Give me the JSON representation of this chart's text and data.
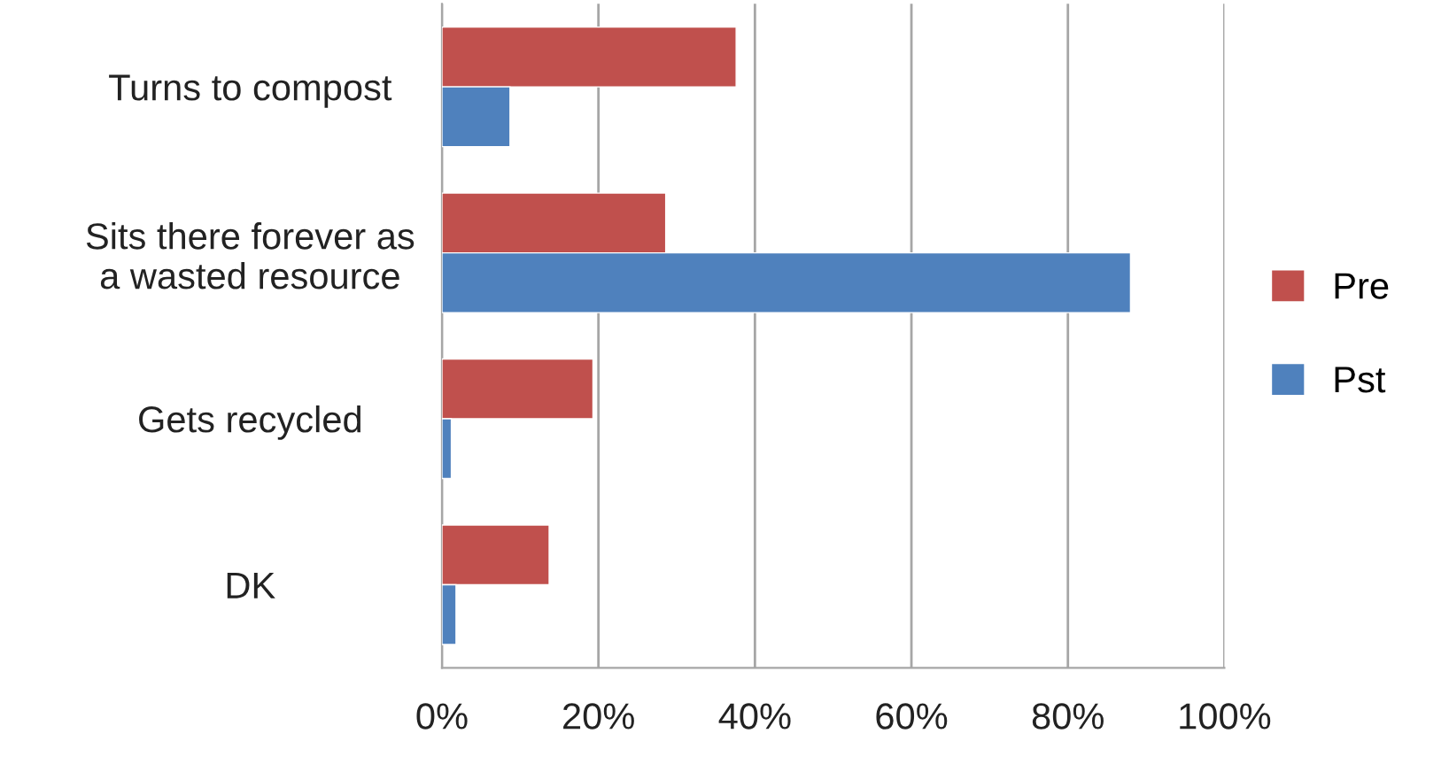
{
  "chart_data": {
    "type": "bar",
    "orientation": "horizontal",
    "categories": [
      "Turns to compost",
      "Sits there forever as\na wasted resource",
      "Gets recycled",
      "DK"
    ],
    "series": [
      {
        "name": "Pre",
        "color": "#c0504d",
        "values": [
          37.6,
          28.6,
          19.3,
          13.7
        ]
      },
      {
        "name": "Pst",
        "color": "#4f81bd",
        "values": [
          8.7,
          88,
          1.2,
          1.8
        ]
      }
    ],
    "xlim": [
      0,
      100
    ],
    "xticks": [
      {
        "value": 0,
        "label": "0%"
      },
      {
        "value": 20,
        "label": "20%"
      },
      {
        "value": 40,
        "label": "40%"
      },
      {
        "value": 60,
        "label": "60%"
      },
      {
        "value": 80,
        "label": "80%"
      },
      {
        "value": 100,
        "label": "100%"
      }
    ],
    "grid": "x",
    "legend": "right"
  }
}
